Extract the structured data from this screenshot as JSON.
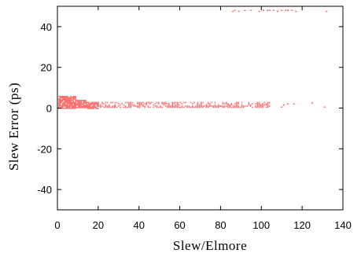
{
  "chart_data": {
    "type": "scatter",
    "title": "",
    "xlabel": "Slew/Elmore",
    "ylabel": "Slew Error (ps)",
    "xlim": [
      0,
      140
    ],
    "ylim": [
      -50,
      50
    ],
    "x_ticks": [
      0,
      20,
      40,
      60,
      80,
      100,
      120,
      140
    ],
    "y_ticks": [
      -40,
      -20,
      0,
      20,
      40
    ],
    "grid": false,
    "point_color": "#ff6b6b",
    "series": [
      {
        "bands": [
          {
            "x_range": [
              0.5,
              9
            ],
            "y_range": [
              0,
              6
            ]
          },
          {
            "x_range": [
              9,
              14
            ],
            "y_range": [
              0,
              4
            ]
          },
          {
            "x_range": [
              14,
              20
            ],
            "y_range": [
              0,
              3
            ]
          },
          {
            "x_range": [
              20,
              28
            ],
            "y_range": [
              0.5,
              3
            ]
          },
          {
            "x_range": [
              28,
              40
            ],
            "y_range": [
              0.5,
              3
            ]
          },
          {
            "x_range": [
              40,
              60
            ],
            "y_range": [
              0.5,
              3
            ]
          },
          {
            "x_range": [
              60,
              80
            ],
            "y_range": [
              0.5,
              3
            ]
          },
          {
            "x_range": [
              80,
              104
            ],
            "y_range": [
              0.5,
              3
            ]
          }
        ],
        "points": [
          {
            "x": 113,
            "y": 2
          },
          {
            "x": 111,
            "y": 1.5
          },
          {
            "x": 116,
            "y": 2
          },
          {
            "x": 110,
            "y": 0.5
          },
          {
            "x": 125,
            "y": 2.5
          },
          {
            "x": 131,
            "y": 0.5
          },
          {
            "x": 86,
            "y": 47.5
          },
          {
            "x": 87,
            "y": 48
          },
          {
            "x": 89,
            "y": 47.5
          },
          {
            "x": 92,
            "y": 48
          },
          {
            "x": 95,
            "y": 48
          },
          {
            "x": 99,
            "y": 47.5
          },
          {
            "x": 101,
            "y": 48
          },
          {
            "x": 103,
            "y": 48
          },
          {
            "x": 104,
            "y": 48
          },
          {
            "x": 106,
            "y": 48
          },
          {
            "x": 108,
            "y": 47.5
          },
          {
            "x": 110,
            "y": 48
          },
          {
            "x": 112,
            "y": 48
          },
          {
            "x": 113,
            "y": 48
          },
          {
            "x": 115,
            "y": 48
          },
          {
            "x": 117,
            "y": 47.5
          },
          {
            "x": 132,
            "y": 47.5
          }
        ]
      }
    ]
  }
}
